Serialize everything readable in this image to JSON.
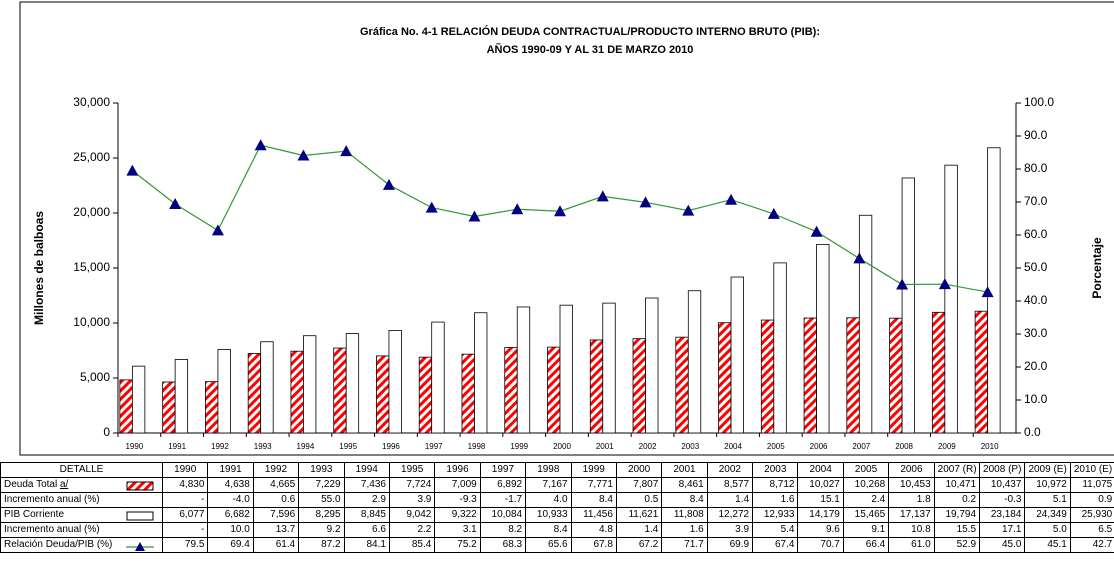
{
  "chart_data": {
    "type": "bar-line",
    "title": "Gráfica No. 4-1  RELACIÓN DEUDA CONTRACTUAL/PRODUCTO INTERNO BRUTO (PIB):",
    "subtitle": "AÑOS 1990-09 Y AL 31 DE MARZO 2010",
    "y_label": "Millones de balboas",
    "y2_label": "Porcentaje",
    "categories": [
      "1990",
      "1991",
      "1992",
      "1993",
      "1994",
      "1995",
      "1996",
      "1997",
      "1998",
      "1999",
      "2000",
      "2001",
      "2002",
      "2003",
      "2004",
      "2005",
      "2006",
      "2007",
      "2008",
      "2009",
      "2010"
    ],
    "ylim": [
      0,
      30000
    ],
    "yticks": [
      0,
      {
        "value": 5000,
        "label": "5,000"
      },
      {
        "value": 10000,
        "label": "10,000"
      },
      {
        "value": 15000,
        "label": "15,000"
      },
      {
        "value": 20000,
        "label": "20,000"
      },
      {
        "value": 25000,
        "label": "25,000"
      },
      {
        "value": 30000,
        "label": "30,000"
      }
    ],
    "y2lim": [
      0,
      100
    ],
    "y2ticks": [
      {
        "value": 0,
        "label": "0.0"
      },
      {
        "value": 10,
        "label": "10.0"
      },
      {
        "value": 20,
        "label": "20.0"
      },
      {
        "value": 30,
        "label": "30.0"
      },
      {
        "value": 40,
        "label": "40.0"
      },
      {
        "value": 50,
        "label": "50.0"
      },
      {
        "value": 60,
        "label": "60.0"
      },
      {
        "value": 70,
        "label": "70.0"
      },
      {
        "value": 80,
        "label": "80.0"
      },
      {
        "value": 90,
        "label": "90.0"
      },
      {
        "value": 100,
        "label": "100.0"
      }
    ],
    "series": [
      {
        "name": "Deuda Total a/",
        "kind": "bar",
        "color": "#ff0000",
        "values": [
          4830,
          4638,
          4665,
          7229,
          7436,
          7724,
          7009,
          6892,
          7167,
          7771,
          7807,
          8461,
          8577,
          8712,
          10027,
          10268,
          10453,
          10471,
          10437,
          10972,
          11075
        ],
        "value_labels": [
          "4,830",
          "4,638",
          "4,665",
          "7,229",
          "7,436",
          "7,724",
          "7,009",
          "6,892",
          "7,167",
          "7,771",
          "7,807",
          "8,461",
          "8,577",
          "8,712",
          "10,027",
          "10,268",
          "10,453",
          "10,471",
          "10,437",
          "10,972",
          "11,075"
        ]
      },
      {
        "name": "PIB Corriente",
        "kind": "bar",
        "color": "#ffffff",
        "values": [
          6077,
          6682,
          7596,
          8295,
          8845,
          9042,
          9322,
          10084,
          10933,
          11456,
          11621,
          11808,
          12272,
          12933,
          14179,
          15465,
          17137,
          19794,
          23184,
          24349,
          25930
        ],
        "value_labels": [
          "6,077",
          "6,682",
          "7,596",
          "8,295",
          "8,845",
          "9,042",
          "9,322",
          "10,084",
          "10,933",
          "11,456",
          "11,621",
          "11,808",
          "12,272",
          "12,933",
          "14,179",
          "15,465",
          "17,137",
          "19,794",
          "23,184",
          "24,349",
          "25,930"
        ]
      },
      {
        "name": "Relación Deuda/PIB (%)",
        "kind": "line",
        "axis": "y2",
        "color": "#339933",
        "marker_color": "#000080",
        "values": [
          79.5,
          69.4,
          61.4,
          87.2,
          84.1,
          85.4,
          75.2,
          68.3,
          65.6,
          67.8,
          67.2,
          71.7,
          69.9,
          67.4,
          70.7,
          66.4,
          61.0,
          52.9,
          45.0,
          45.1,
          42.7
        ],
        "value_labels": [
          "79.5",
          "69.4",
          "61.4",
          "87.2",
          "84.1",
          "85.4",
          "75.2",
          "68.3",
          "65.6",
          "67.8",
          "67.2",
          "71.7",
          "69.9",
          "67.4",
          "70.7",
          "66.4",
          "61.0",
          "52.9",
          "45.0",
          "45.1",
          "42.7"
        ]
      }
    ]
  },
  "table": {
    "header": "DETALLE",
    "columns": [
      "1990",
      "1991",
      "1992",
      "1993",
      "1994",
      "1995",
      "1996",
      "1997",
      "1998",
      "1999",
      "2000",
      "2001",
      "2002",
      "2003",
      "2004",
      "2005",
      "2006",
      "2007 (R)",
      "2008 (P)",
      "2009 (E)",
      "2010 (E)"
    ],
    "increments": [
      {
        "label": "Incremento anual (%)",
        "cells": [
          "-",
          "-4.0",
          "0.6",
          "55.0",
          "2.9",
          "3.9",
          "-9.3",
          "-1.7",
          "4.0",
          "8.4",
          "0.5",
          "8.4",
          "1.4",
          "1.6",
          "15.1",
          "2.4",
          "1.8",
          "0.2",
          "-0.3",
          "5.1",
          "0.9"
        ]
      },
      {
        "label": "Incremento anual (%)",
        "cells": [
          "-",
          "10.0",
          "13.7",
          "9.2",
          "6.6",
          "2.2",
          "3.1",
          "8.2",
          "8.4",
          "4.8",
          "1.4",
          "1.6",
          "3.9",
          "5.4",
          "9.6",
          "9.1",
          "10.8",
          "15.5",
          "17.1",
          "5.0",
          "6.5"
        ]
      }
    ]
  }
}
